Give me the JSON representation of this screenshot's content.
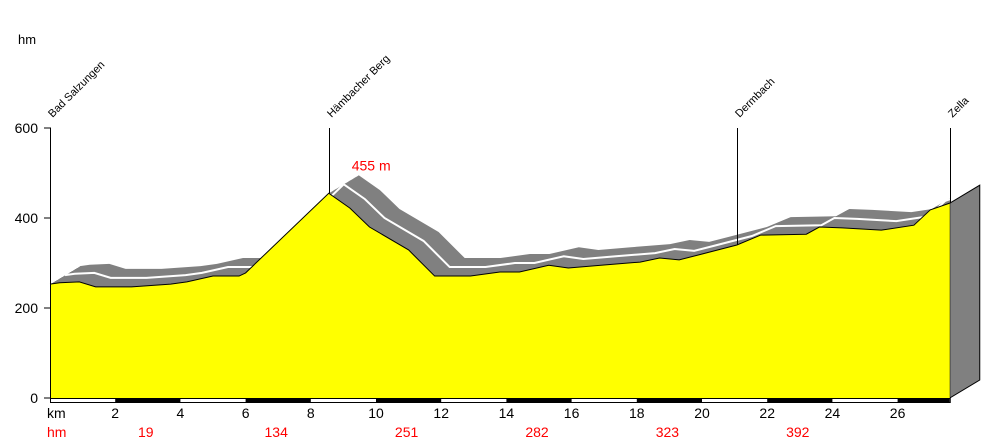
{
  "chart_data": {
    "type": "area",
    "ylabel": "hm",
    "xlabel": "km",
    "ylim": [
      0,
      600
    ],
    "xlim": [
      0,
      27.6
    ],
    "y_ticks": [
      "0",
      "200",
      "400",
      "600"
    ],
    "x_ticks": [
      "2",
      "4",
      "6",
      "8",
      "10",
      "12",
      "14",
      "16",
      "18",
      "20",
      "22",
      "24",
      "26"
    ],
    "profile": [
      [
        0,
        253
      ],
      [
        0.3,
        256
      ],
      [
        0.9,
        258
      ],
      [
        1.4,
        247
      ],
      [
        2.5,
        247
      ],
      [
        3.7,
        253
      ],
      [
        4.2,
        258
      ],
      [
        5.0,
        271
      ],
      [
        5.8,
        271
      ],
      [
        6.0,
        278
      ],
      [
        8.55,
        455
      ],
      [
        9.2,
        422
      ],
      [
        9.8,
        380
      ],
      [
        11.0,
        329
      ],
      [
        11.8,
        271
      ],
      [
        12.9,
        271
      ],
      [
        13.8,
        280
      ],
      [
        14.4,
        280
      ],
      [
        15.3,
        295
      ],
      [
        15.9,
        289
      ],
      [
        16.9,
        295
      ],
      [
        18.1,
        302
      ],
      [
        18.7,
        311
      ],
      [
        19.3,
        307
      ],
      [
        19.9,
        318
      ],
      [
        21.07,
        340
      ],
      [
        21.8,
        362
      ],
      [
        23.2,
        364
      ],
      [
        23.6,
        380
      ],
      [
        24.3,
        378
      ],
      [
        25.5,
        373
      ],
      [
        26.5,
        384
      ],
      [
        27.0,
        418
      ],
      [
        27.6,
        433
      ]
    ],
    "places": [
      {
        "name": "Bad Salzungen",
        "km": 0
      },
      {
        "name": "Hämbacher Berg",
        "km": 8.55
      },
      {
        "name": "Dermbach",
        "km": 21.07
      },
      {
        "name": "Zella",
        "km": 27.6
      }
    ],
    "annotations": [
      {
        "text": "455 m",
        "km": 8.55,
        "elevation": 455
      }
    ],
    "climb_label": "hm",
    "climb_values": [
      {
        "km": 3,
        "value": "19"
      },
      {
        "km": 7,
        "value": "134"
      },
      {
        "km": 11,
        "value": "251"
      },
      {
        "km": 15,
        "value": "282"
      },
      {
        "km": 19,
        "value": "323"
      },
      {
        "km": 23,
        "value": "392"
      }
    ],
    "colors": {
      "fill": "#ffff00",
      "band": "#808080",
      "climb": "#ff0000",
      "annotation": "#ff0000"
    }
  }
}
